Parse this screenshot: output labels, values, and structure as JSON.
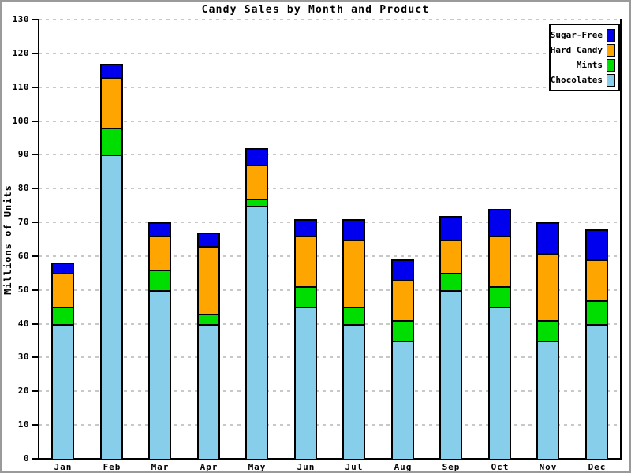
{
  "title": "Candy Sales by Month and Product",
  "legend": [
    {
      "label": "Sugar-Free",
      "color": "#0000ee"
    },
    {
      "label": "Hard Candy",
      "color": "#ffa500"
    },
    {
      "label": "Mints",
      "color": "#00dd00"
    },
    {
      "label": "Chocolates",
      "color": "#87ceeb"
    }
  ],
  "chart_data": {
    "type": "bar",
    "stacked": true,
    "title": "Candy Sales by Month and Product",
    "xlabel": "",
    "ylabel": "Millions of Units",
    "ylim": [
      0,
      130
    ],
    "y_tick_step": 10,
    "grid": true,
    "legend_position": "top-right",
    "categories": [
      "Jan",
      "Feb",
      "Mar",
      "Apr",
      "May",
      "Jun",
      "Jul",
      "Aug",
      "Sep",
      "Oct",
      "Nov",
      "Dec"
    ],
    "series": [
      {
        "name": "Chocolates",
        "color": "#87ceeb",
        "values": [
          40,
          90,
          50,
          40,
          75,
          45,
          40,
          35,
          50,
          45,
          35,
          40
        ]
      },
      {
        "name": "Mints",
        "color": "#00dd00",
        "values": [
          5,
          8,
          6,
          3,
          2,
          6,
          5,
          6,
          5,
          6,
          6,
          7
        ]
      },
      {
        "name": "Hard Candy",
        "color": "#ffa500",
        "values": [
          10,
          15,
          10,
          20,
          10,
          15,
          20,
          12,
          10,
          15,
          20,
          12
        ]
      },
      {
        "name": "Sugar-Free",
        "color": "#0000ee",
        "values": [
          3,
          4,
          4,
          4,
          5,
          5,
          6,
          6,
          7,
          8,
          9,
          9
        ]
      }
    ],
    "totals": [
      58,
      117,
      70,
      67,
      92,
      71,
      71,
      59,
      72,
      74,
      70,
      68
    ]
  }
}
